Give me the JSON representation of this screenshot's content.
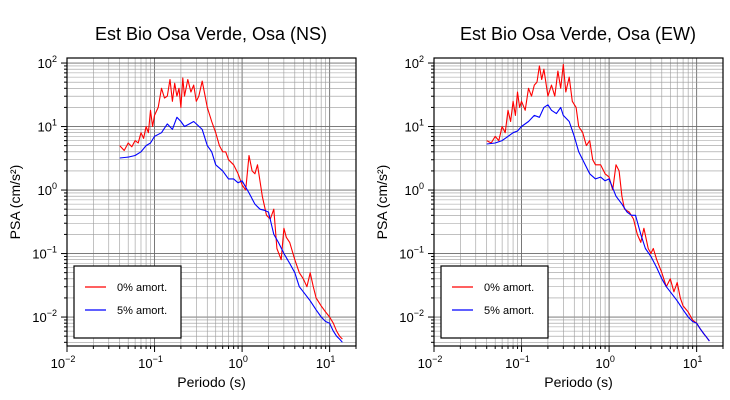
{
  "chart_data": [
    {
      "type": "line",
      "title": "Est Bio Osa Verde, Osa (NS)",
      "xlabel": "Periodo (s)",
      "ylabel": "PSA (cm/s²)",
      "x_scale": "log",
      "y_scale": "log",
      "xlim": [
        0.01,
        20
      ],
      "ylim": [
        0.0035,
        120
      ],
      "grid": true,
      "legend_position": "bottom-left",
      "x_ticks": [
        {
          "value": 0.01,
          "base": "10",
          "exp": "−2"
        },
        {
          "value": 0.1,
          "base": "10",
          "exp": "−1"
        },
        {
          "value": 1,
          "base": "10",
          "exp": "0"
        },
        {
          "value": 10,
          "base": "10",
          "exp": "1"
        }
      ],
      "y_ticks": [
        {
          "value": 0.01,
          "base": "10",
          "exp": "−2"
        },
        {
          "value": 0.1,
          "base": "10",
          "exp": "−1"
        },
        {
          "value": 1,
          "base": "10",
          "exp": "0"
        },
        {
          "value": 10,
          "base": "10",
          "exp": "1"
        },
        {
          "value": 100,
          "base": "10",
          "exp": "2"
        }
      ],
      "series": [
        {
          "name": "0% amort.",
          "color": "#ff0000",
          "x": [
            0.04,
            0.045,
            0.05,
            0.055,
            0.06,
            0.065,
            0.07,
            0.075,
            0.08,
            0.085,
            0.09,
            0.095,
            0.1,
            0.11,
            0.12,
            0.13,
            0.14,
            0.15,
            0.16,
            0.17,
            0.18,
            0.19,
            0.2,
            0.21,
            0.22,
            0.24,
            0.26,
            0.28,
            0.3,
            0.32,
            0.35,
            0.4,
            0.45,
            0.5,
            0.55,
            0.6,
            0.65,
            0.7,
            0.8,
            0.9,
            1.0,
            1.1,
            1.2,
            1.3,
            1.4,
            1.5,
            1.7,
            1.9,
            2.1,
            2.3,
            2.5,
            2.8,
            3.0,
            3.2,
            3.5,
            4.0,
            4.5,
            5.0,
            5.5,
            6.0,
            6.5,
            7.0,
            8.0,
            9.0,
            10,
            11,
            12,
            13,
            14
          ],
          "y": [
            5,
            4.2,
            5.5,
            4.8,
            6,
            5.5,
            8,
            6.5,
            10,
            8,
            18,
            10,
            15,
            20,
            40,
            28,
            30,
            55,
            25,
            48,
            30,
            40,
            20,
            58,
            30,
            55,
            35,
            45,
            25,
            30,
            52,
            20,
            12,
            8,
            5,
            4,
            4,
            3,
            2.5,
            1.8,
            1.2,
            1.0,
            3.5,
            2.0,
            1.8,
            2.5,
            0.8,
            0.4,
            0.35,
            0.5,
            0.12,
            0.08,
            0.25,
            0.18,
            0.15,
            0.08,
            0.05,
            0.04,
            0.03,
            0.05,
            0.03,
            0.02,
            0.015,
            0.012,
            0.01,
            0.008,
            0.006,
            0.005,
            0.0045
          ]
        },
        {
          "name": "5% amort.",
          "color": "#0000ff",
          "x": [
            0.04,
            0.05,
            0.06,
            0.07,
            0.08,
            0.09,
            0.1,
            0.12,
            0.14,
            0.16,
            0.18,
            0.2,
            0.22,
            0.25,
            0.28,
            0.3,
            0.35,
            0.4,
            0.45,
            0.5,
            0.6,
            0.7,
            0.8,
            0.9,
            1.0,
            1.2,
            1.4,
            1.6,
            1.8,
            2.0,
            2.3,
            2.6,
            3.0,
            3.5,
            4.0,
            4.5,
            5.0,
            6.0,
            7.0,
            8.0,
            9.0,
            10,
            11,
            12,
            13,
            14
          ],
          "y": [
            3.2,
            3.3,
            3.5,
            4,
            5,
            5.5,
            7,
            8,
            11,
            9,
            14,
            12,
            10,
            11,
            12,
            11,
            9,
            5,
            4,
            2.5,
            2.0,
            1.5,
            1.5,
            1.3,
            1.4,
            0.9,
            0.6,
            0.5,
            0.48,
            0.45,
            0.2,
            0.15,
            0.1,
            0.07,
            0.05,
            0.03,
            0.025,
            0.018,
            0.013,
            0.01,
            0.0085,
            0.008,
            0.006,
            0.005,
            0.0045,
            0.004
          ]
        }
      ]
    },
    {
      "type": "line",
      "title": "Est Bio Osa Verde, Osa (EW)",
      "xlabel": "Periodo (s)",
      "ylabel": "PSA (cm/s²)",
      "x_scale": "log",
      "y_scale": "log",
      "xlim": [
        0.01,
        20
      ],
      "ylim": [
        0.0035,
        120
      ],
      "grid": true,
      "legend_position": "bottom-left",
      "x_ticks": [
        {
          "value": 0.01,
          "base": "10",
          "exp": "−2"
        },
        {
          "value": 0.1,
          "base": "10",
          "exp": "−1"
        },
        {
          "value": 1,
          "base": "10",
          "exp": "0"
        },
        {
          "value": 10,
          "base": "10",
          "exp": "1"
        }
      ],
      "y_ticks": [
        {
          "value": 0.01,
          "base": "10",
          "exp": "−2"
        },
        {
          "value": 0.1,
          "base": "10",
          "exp": "−1"
        },
        {
          "value": 1,
          "base": "10",
          "exp": "0"
        },
        {
          "value": 10,
          "base": "10",
          "exp": "1"
        },
        {
          "value": 100,
          "base": "10",
          "exp": "2"
        }
      ],
      "series": [
        {
          "name": "0% amort.",
          "color": "#ff0000",
          "x": [
            0.04,
            0.045,
            0.05,
            0.055,
            0.06,
            0.065,
            0.07,
            0.075,
            0.08,
            0.085,
            0.09,
            0.095,
            0.1,
            0.11,
            0.12,
            0.13,
            0.14,
            0.15,
            0.16,
            0.17,
            0.18,
            0.2,
            0.22,
            0.24,
            0.26,
            0.28,
            0.3,
            0.32,
            0.35,
            0.38,
            0.42,
            0.45,
            0.5,
            0.55,
            0.6,
            0.65,
            0.7,
            0.8,
            0.9,
            1.0,
            1.1,
            1.2,
            1.3,
            1.4,
            1.5,
            1.7,
            1.9,
            2.1,
            2.3,
            2.5,
            2.8,
            3.0,
            3.2,
            3.5,
            4.0,
            4.5,
            5.0,
            5.5,
            6.0,
            6.5,
            7.0,
            8.0,
            9.0,
            10,
            11,
            12,
            13,
            14
          ],
          "y": [
            6,
            5.5,
            7,
            6,
            10,
            8,
            18,
            12,
            25,
            15,
            35,
            20,
            25,
            18,
            40,
            30,
            45,
            50,
            90,
            55,
            80,
            30,
            45,
            30,
            75,
            40,
            95,
            35,
            60,
            25,
            20,
            10,
            8,
            5,
            6,
            3,
            2.5,
            2.5,
            1.8,
            1.6,
            1.0,
            2.5,
            2.0,
            0.8,
            0.5,
            0.45,
            0.35,
            0.2,
            0.15,
            0.25,
            0.12,
            0.1,
            0.12,
            0.08,
            0.05,
            0.03,
            0.04,
            0.025,
            0.035,
            0.02,
            0.015,
            0.012,
            0.009,
            0.008,
            0.0065,
            0.0055,
            0.0048,
            0.0042
          ]
        },
        {
          "name": "5% amort.",
          "color": "#0000ff",
          "x": [
            0.04,
            0.05,
            0.06,
            0.07,
            0.08,
            0.09,
            0.1,
            0.12,
            0.14,
            0.16,
            0.18,
            0.2,
            0.22,
            0.25,
            0.28,
            0.3,
            0.35,
            0.4,
            0.45,
            0.5,
            0.6,
            0.7,
            0.8,
            0.9,
            1.0,
            1.2,
            1.4,
            1.6,
            1.8,
            2.0,
            2.3,
            2.6,
            3.0,
            3.5,
            4.0,
            4.5,
            5.0,
            6.0,
            7.0,
            8.0,
            9.0,
            10,
            11,
            12,
            13,
            14
          ],
          "y": [
            5.3,
            5.5,
            6,
            7,
            8,
            8.5,
            10,
            12,
            15,
            14,
            20,
            22,
            18,
            16,
            20,
            15,
            12,
            7,
            4,
            3,
            1.8,
            1.5,
            1.6,
            1.4,
            1.5,
            0.8,
            0.6,
            0.45,
            0.4,
            0.4,
            0.2,
            0.12,
            0.09,
            0.06,
            0.04,
            0.03,
            0.025,
            0.018,
            0.013,
            0.01,
            0.0085,
            0.008,
            0.0065,
            0.0055,
            0.0048,
            0.0042
          ]
        }
      ]
    }
  ]
}
